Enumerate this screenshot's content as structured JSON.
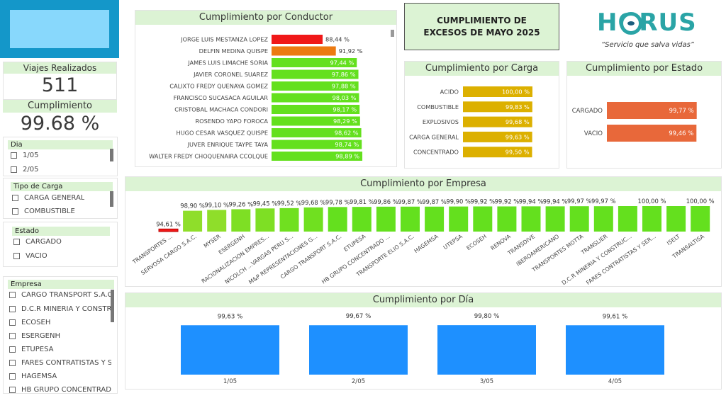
{
  "kpis": {
    "viajes_label": "Viajes Realizados",
    "viajes_value": "511",
    "cumplimiento_label": "Cumplimiento",
    "cumplimiento_value": "99.68 %"
  },
  "slicers": {
    "dia": {
      "title": "Dia",
      "items": [
        "1/05",
        "2/05"
      ]
    },
    "tipo_carga": {
      "title": "Tipo de Carga",
      "items": [
        "CARGA GENERAL",
        "COMBUSTIBLE"
      ]
    },
    "estado": {
      "title": "Estado",
      "items": [
        "CARGADO",
        "VACIO"
      ]
    },
    "empresa": {
      "title": "Empresa",
      "items": [
        "CARGO TRANSPORT S.A.C.",
        "D.C.R MINERIA Y CONSTRUC...",
        "ECOSEH",
        "ESERGENH",
        "ETUPESA",
        "FARES CONTRATISTAS Y SER...",
        "HAGEMSA",
        "HB GRUPO CONCENTRADO ..."
      ]
    }
  },
  "main_title": "CUMPLIMIENTO DE EXCESOS DE MAYO 2025",
  "brand": {
    "name": "HORUS",
    "slogan": "“Servicio que salva vidas”",
    "color": "#2aa4a6"
  },
  "colors": {
    "header_bg": "#dcf3d4",
    "green": "#64e01e",
    "red": "#f01818",
    "orange": "#ec7a12",
    "gold": "#dcb000",
    "coral": "#e8683a",
    "blue": "#1e90ff"
  },
  "chart_data": [
    {
      "id": "conductor",
      "type": "bar",
      "orientation": "horizontal",
      "title": "Cumplimiento por Conductor",
      "categories": [
        "JORGE LUIS MESTANZA LOPEZ",
        "DELFIN MEDINA QUISPE",
        "JAMES LUIS LIMACHE SORIA",
        "JAVIER CORONEL SUAREZ",
        "CALIXTO FREDY QUENAYA GOMEZ",
        "FRANCISCO SUCASACA AGUILAR",
        "CRISTOBAL MACHACA CONDORI",
        "ROSENDO YAPO FOROCA",
        "HUGO CESAR VASQUEZ QUISPE",
        "JUVER ENRIQUE TAYPE TAYA",
        "WALTER FREDY CHOQUENAIRA CCOLQUE"
      ],
      "values": [
        88.44,
        91.92,
        97.44,
        97.86,
        97.88,
        98.03,
        98.17,
        98.29,
        98.62,
        98.74,
        98.89
      ],
      "labels": [
        "88,44 %",
        "91,92 %",
        "97,44 %",
        "97,86 %",
        "97,88 %",
        "98,03 %",
        "98,17 %",
        "98,29 %",
        "98,62 %",
        "98,74 %",
        "98,89 %"
      ],
      "bar_colors": [
        "#f01818",
        "#ec7a12",
        "#64e01e",
        "#64e01e",
        "#64e01e",
        "#64e01e",
        "#64e01e",
        "#64e01e",
        "#64e01e",
        "#64e01e",
        "#64e01e"
      ],
      "xlim": [
        0,
        100
      ]
    },
    {
      "id": "carga",
      "type": "bar",
      "orientation": "horizontal",
      "title": "Cumplimiento por Carga",
      "categories": [
        "ACIDO",
        "COMBUSTIBLE",
        "EXPLOSIVOS",
        "CARGA GENERAL",
        "CONCENTRADO"
      ],
      "values": [
        100.0,
        99.83,
        99.68,
        99.63,
        99.5
      ],
      "labels": [
        "100,00 %",
        "99,83 %",
        "99,68 %",
        "99,63 %",
        "99,50 %"
      ],
      "bar_colors": [
        "#dcb000",
        "#dcb000",
        "#dcb000",
        "#dcb000",
        "#dcb000"
      ],
      "xlim": [
        0,
        100
      ]
    },
    {
      "id": "estado",
      "type": "bar",
      "orientation": "horizontal",
      "title": "Cumplimiento por Estado",
      "categories": [
        "CARGADO",
        "VACIO"
      ],
      "values": [
        99.77,
        99.46
      ],
      "labels": [
        "99,77 %",
        "99,46 %"
      ],
      "bar_colors": [
        "#e8683a",
        "#e8683a"
      ],
      "xlim": [
        0,
        100
      ]
    },
    {
      "id": "empresa",
      "type": "bar",
      "orientation": "vertical",
      "title": "Cumplimiento por Empresa",
      "categories": [
        "TRANSPORTES ...",
        "SERVOSA CARGO S.A.C.",
        "MYSER",
        "ESERGENH",
        "RACIONALIZACION EMPRES...",
        "NICOLCH ...VARGAS PERU S...",
        "M&P REPRESENTACIONES G...",
        "CARGO TRANSPORT S.A.C.",
        "ETUPESA",
        "HB GRUPO CONCENTRADO ...",
        "TRANSPORTE ELIO S.A.C.",
        "HAGEMSA",
        "UTEPSA",
        "ECOSEH",
        "RENOVA",
        "TRANSDIVE",
        "IBEROAMERICANO",
        "TRANSPORTES MOTTA",
        "TRANSLIER",
        "D.C.R MINERIA Y CONSTRUC...",
        "FARES CONTRATISTAS Y SER...",
        "ISELT",
        "TRANSALTISA"
      ],
      "values": [
        94.61,
        98.9,
        99.1,
        99.26,
        99.45,
        99.52,
        99.68,
        99.78,
        99.81,
        99.86,
        99.87,
        99.87,
        99.9,
        99.92,
        99.92,
        99.94,
        99.94,
        99.97,
        99.97,
        100.0,
        100.0,
        100.0,
        100.0
      ],
      "labels": [
        "94,61 %",
        "98,90 %",
        "99,10 %",
        "99,26 %",
        "99,45 %",
        "99,52 %",
        "99,68 %",
        "99,78 %",
        "99,81 %",
        "99,86 %",
        "99,87 %",
        "99,87 %",
        "99,90 %",
        "99,92 %",
        "99,92 %",
        "99,94 %",
        "99,94 %",
        "99,97 %",
        "99,97 %",
        "",
        "100,00 %",
        "",
        "100,00 %"
      ],
      "bar_colors": [
        "#f01818",
        "#8fde2a",
        "#8fde2a",
        "#7edf24",
        "#7edf24",
        "#70e020",
        "#70e020",
        "#64e01e",
        "#64e01e",
        "#64e01e",
        "#64e01e",
        "#64e01e",
        "#64e01e",
        "#64e01e",
        "#64e01e",
        "#64e01e",
        "#64e01e",
        "#64e01e",
        "#64e01e",
        "#64e01e",
        "#64e01e",
        "#64e01e",
        "#64e01e"
      ],
      "ylim": [
        94,
        100
      ]
    },
    {
      "id": "dia",
      "type": "bar",
      "orientation": "vertical",
      "title": "Cumplimiento por Día",
      "categories": [
        "1/05",
        "2/05",
        "3/05",
        "4/05"
      ],
      "values": [
        99.63,
        99.67,
        99.8,
        99.61
      ],
      "labels": [
        "99,63 %",
        "99,67 %",
        "99,80 %",
        "99,61 %"
      ],
      "bar_colors": [
        "#1e90ff",
        "#1e90ff",
        "#1e90ff",
        "#1e90ff"
      ],
      "ylim": [
        0,
        100
      ]
    }
  ]
}
